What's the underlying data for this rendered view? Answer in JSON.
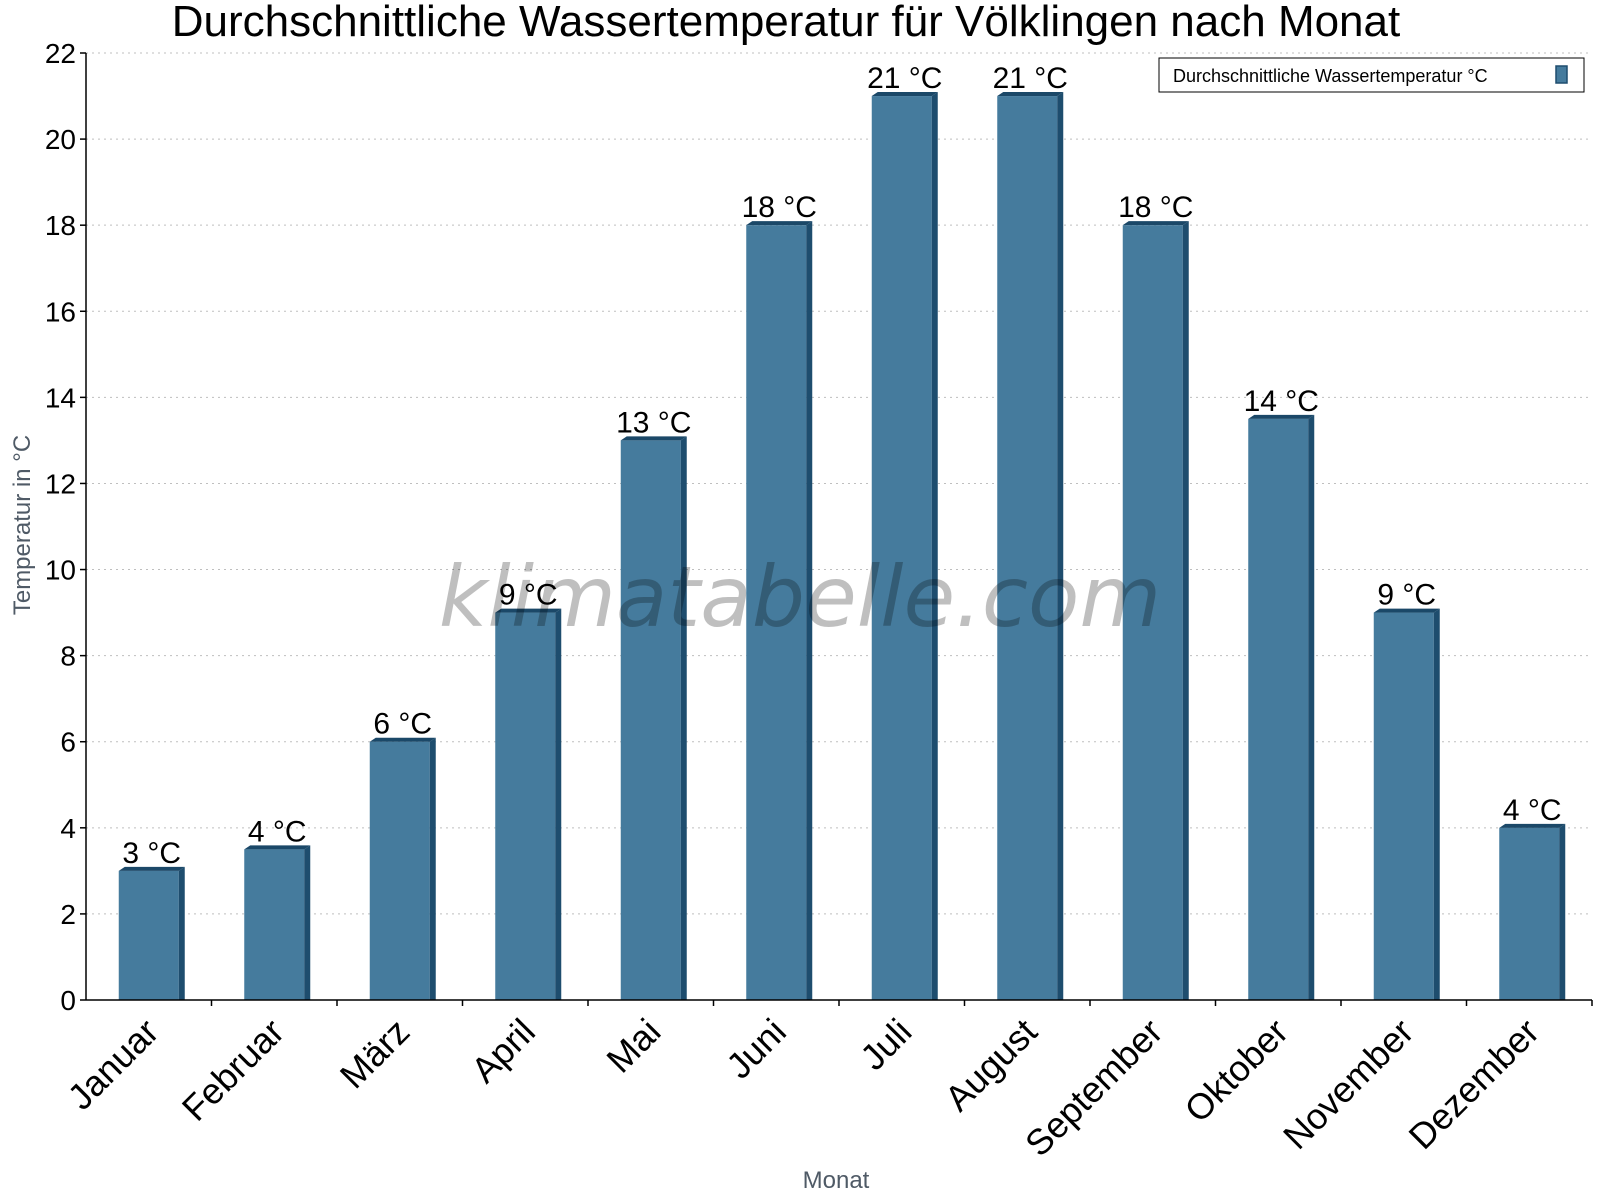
{
  "chart_data": {
    "type": "bar",
    "title": "Durchschnittliche Wassertemperatur für Völklingen nach Monat",
    "xlabel": "Monat",
    "ylabel": "Temperatur in °C",
    "ylim": [
      0,
      22
    ],
    "yticks": [
      0,
      2,
      4,
      6,
      8,
      10,
      12,
      14,
      16,
      18,
      20,
      22
    ],
    "grid": true,
    "legend_position": "top-right",
    "categories": [
      "Januar",
      "Februar",
      "März",
      "April",
      "Mai",
      "Juni",
      "Juli",
      "August",
      "September",
      "Oktober",
      "November",
      "Dezember"
    ],
    "series": [
      {
        "name": "Durchschnittliche Wassertemperatur °C",
        "color": "#457b9d",
        "values": [
          3,
          3.5,
          6,
          9,
          13,
          18,
          21,
          21,
          18,
          13.5,
          9,
          4
        ],
        "labels": [
          "3 °C",
          "4 °C",
          "6 °C",
          "9 °C",
          "13 °C",
          "18 °C",
          "21 °C",
          "21 °C",
          "18 °C",
          "14 °C",
          "9 °C",
          "4 °C"
        ]
      }
    ],
    "watermark": "klimatabelle.com"
  },
  "colors": {
    "bar_face": "#457b9d",
    "bar_side": "#1e4d6e",
    "bar_top": "#1b4868",
    "grid": "#bfbfbf",
    "axis": "#000000"
  }
}
